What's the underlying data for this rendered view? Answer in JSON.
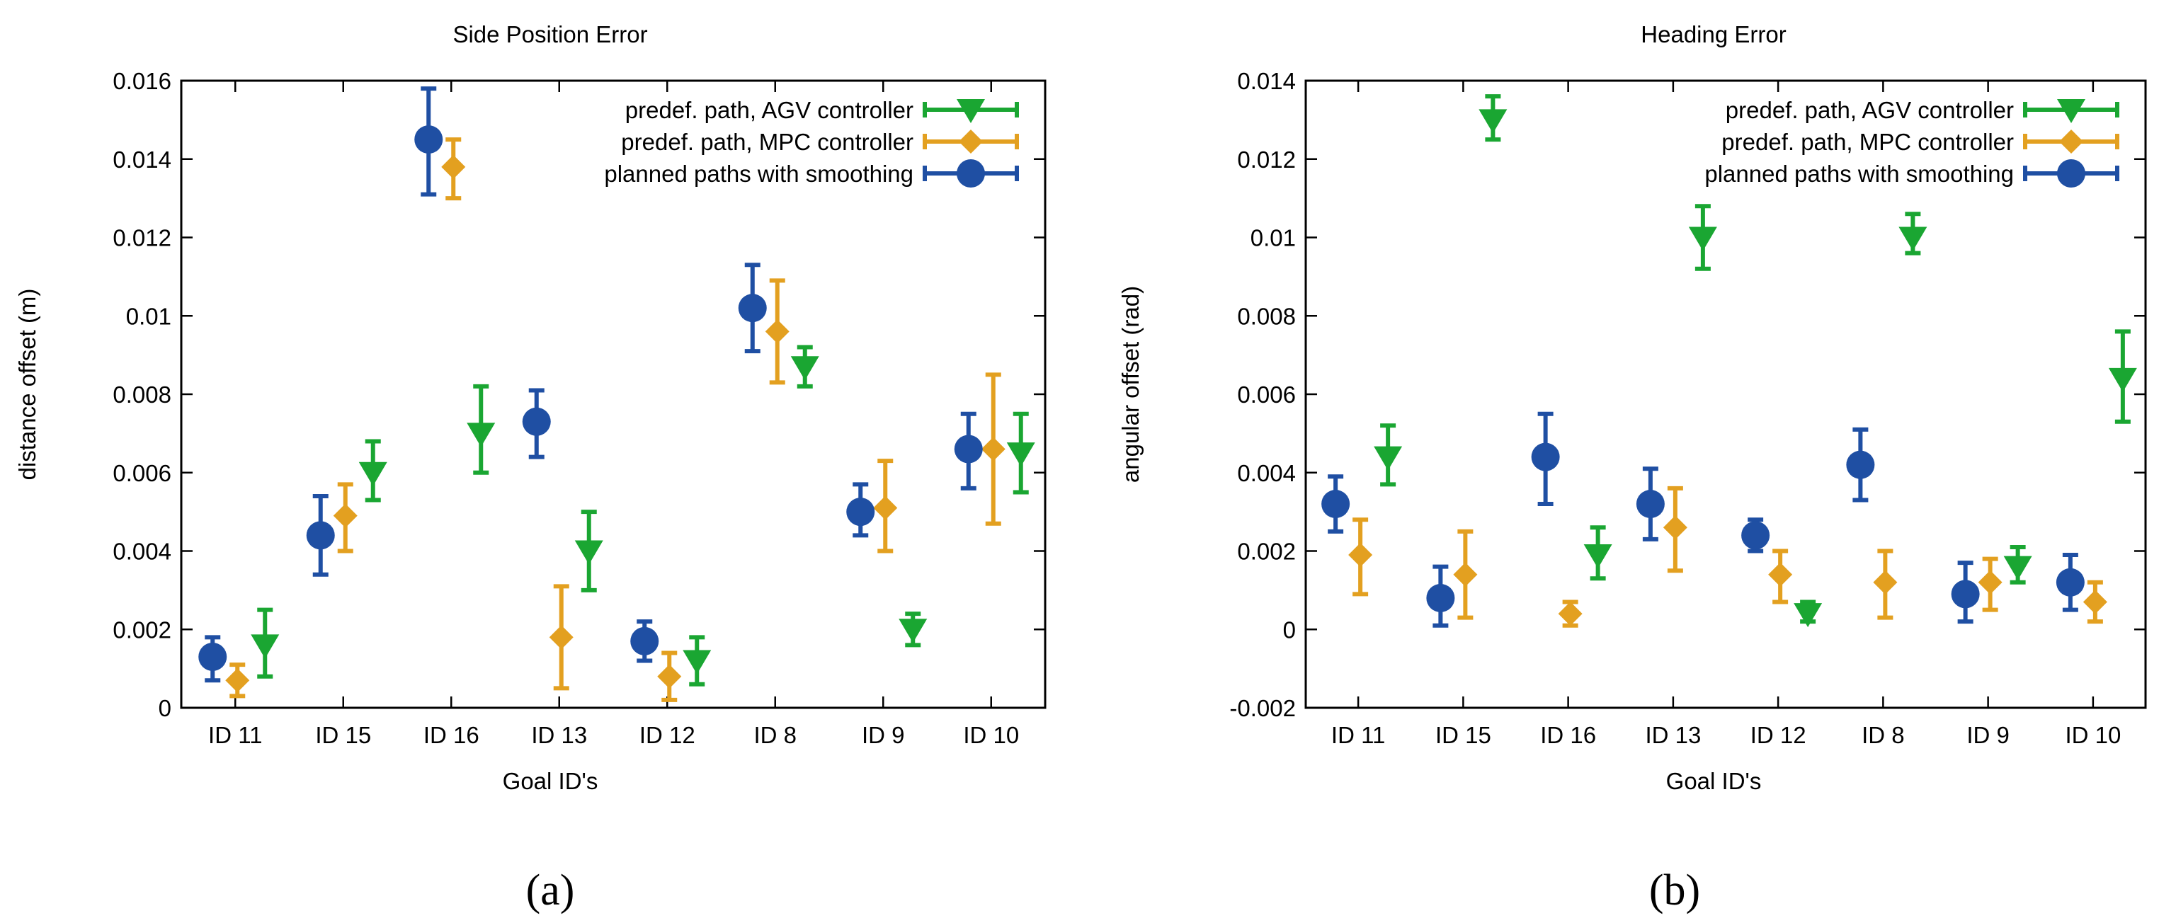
{
  "colors": {
    "agv": "#1aa632",
    "mpc": "#e3a020",
    "smooth": "#1f4fa3",
    "axis": "#000000"
  },
  "chart_data": [
    {
      "type": "scatter",
      "title": "Side Position Error",
      "xlabel": "Goal ID's",
      "ylabel": "distance offset (m)",
      "caption": "(a)",
      "categories": [
        "ID 11",
        "ID 15",
        "ID 16",
        "ID 13",
        "ID 12",
        "ID 8",
        "ID 9",
        "ID 10"
      ],
      "ylim": [
        0,
        0.016
      ],
      "yticks": [
        0,
        0.002,
        0.004,
        0.006,
        0.008,
        0.01,
        0.012,
        0.014,
        0.016
      ],
      "ytick_labels": [
        "0",
        "0.002",
        "0.004",
        "0.006",
        "0.008",
        "0.01",
        "0.012",
        "0.014",
        "0.016"
      ],
      "legend": {
        "position": "top-right",
        "entries": [
          "predef. path, AGV controller",
          "predef. path, MPC controller",
          "planned paths with smoothing"
        ]
      },
      "series": [
        {
          "name": "predef. path, AGV controller",
          "marker": "triangle-down",
          "color_key": "agv",
          "values": [
            0.0016,
            0.006,
            0.007,
            0.004,
            0.0012,
            0.0087,
            0.002,
            0.0065
          ],
          "err_low": [
            0.0008,
            0.0053,
            0.006,
            0.003,
            0.0006,
            0.0082,
            0.0016,
            0.0055
          ],
          "err_high": [
            0.0025,
            0.0068,
            0.0082,
            0.005,
            0.0018,
            0.0092,
            0.0024,
            0.0075
          ]
        },
        {
          "name": "predef. path, MPC controller",
          "marker": "diamond",
          "color_key": "mpc",
          "values": [
            0.0007,
            0.0049,
            0.0138,
            0.0018,
            0.0008,
            0.0096,
            0.0051,
            0.0066
          ],
          "err_low": [
            0.0003,
            0.004,
            0.013,
            0.0005,
            0.0002,
            0.0083,
            0.004,
            0.0047
          ],
          "err_high": [
            0.0011,
            0.0057,
            0.0145,
            0.0031,
            0.0014,
            0.0109,
            0.0063,
            0.0085
          ]
        },
        {
          "name": "planned paths with smoothing",
          "marker": "circle",
          "color_key": "smooth",
          "values": [
            0.0013,
            0.0044,
            0.0145,
            0.0073,
            0.0017,
            0.0102,
            0.005,
            0.0066
          ],
          "err_low": [
            0.0007,
            0.0034,
            0.0131,
            0.0064,
            0.0012,
            0.0091,
            0.0044,
            0.0056
          ],
          "err_high": [
            0.0018,
            0.0054,
            0.0158,
            0.0081,
            0.0022,
            0.0113,
            0.0057,
            0.0075
          ]
        }
      ]
    },
    {
      "type": "scatter",
      "title": "Heading Error",
      "xlabel": "Goal ID's",
      "ylabel": "angular offset (rad)",
      "caption": "(b)",
      "categories": [
        "ID 11",
        "ID 15",
        "ID 16",
        "ID 13",
        "ID 12",
        "ID 8",
        "ID 9",
        "ID 10"
      ],
      "ylim": [
        -0.002,
        0.014
      ],
      "yticks": [
        -0.002,
        0,
        0.002,
        0.004,
        0.006,
        0.008,
        0.01,
        0.012,
        0.014
      ],
      "ytick_labels": [
        "-0.002",
        "0",
        "0.002",
        "0.004",
        "0.006",
        "0.008",
        "0.01",
        "0.012",
        "0.014"
      ],
      "legend": {
        "position": "top-right",
        "entries": [
          "predef. path, AGV controller",
          "predef. path, MPC controller",
          "planned paths with smoothing"
        ]
      },
      "series": [
        {
          "name": "predef. path, AGV controller",
          "marker": "triangle-down",
          "color_key": "agv",
          "values": [
            0.0044,
            0.013,
            0.0019,
            0.01,
            0.0004,
            0.01,
            0.0016,
            0.0064
          ],
          "err_low": [
            0.0037,
            0.0125,
            0.0013,
            0.0092,
            0.0002,
            0.0096,
            0.0012,
            0.0053
          ],
          "err_high": [
            0.0052,
            0.0136,
            0.0026,
            0.0108,
            0.0007,
            0.0106,
            0.0021,
            0.0076
          ]
        },
        {
          "name": "predef. path, MPC controller",
          "marker": "diamond",
          "color_key": "mpc",
          "values": [
            0.0019,
            0.0014,
            0.0004,
            0.0026,
            0.0014,
            0.0012,
            0.0012,
            0.0007
          ],
          "err_low": [
            0.0009,
            0.0003,
            0.0001,
            0.0015,
            0.0007,
            0.0003,
            0.0005,
            0.0002
          ],
          "err_high": [
            0.0028,
            0.0025,
            0.0007,
            0.0036,
            0.002,
            0.002,
            0.0018,
            0.0012
          ]
        },
        {
          "name": "planned paths with smoothing",
          "marker": "circle",
          "color_key": "smooth",
          "values": [
            0.0032,
            0.0008,
            0.0044,
            0.0032,
            0.0024,
            0.0042,
            0.0009,
            0.0012
          ],
          "err_low": [
            0.0025,
            0.0001,
            0.0032,
            0.0023,
            0.002,
            0.0033,
            0.0002,
            0.0005
          ],
          "err_high": [
            0.0039,
            0.0016,
            0.0055,
            0.0041,
            0.0028,
            0.0051,
            0.0017,
            0.0019
          ]
        }
      ]
    }
  ]
}
